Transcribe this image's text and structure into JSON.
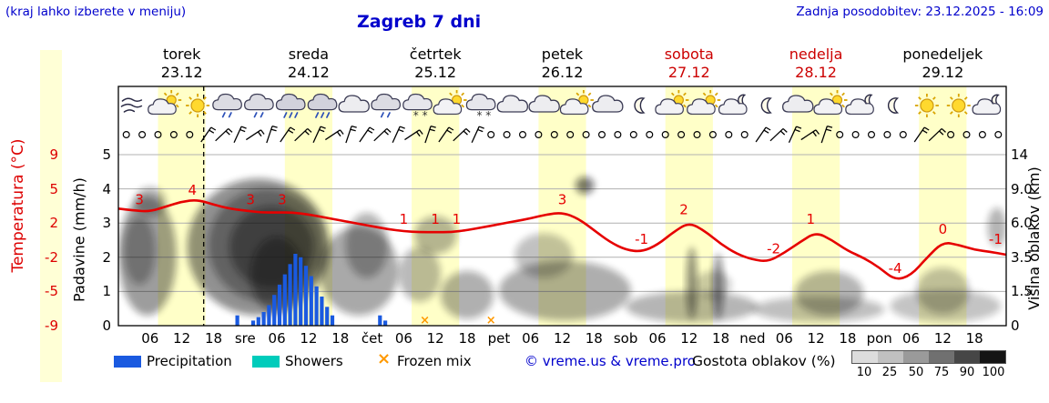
{
  "header": {
    "hint": "(kraj lahko izberete v meniju)",
    "title": "Zagreb 7 dni",
    "updated": "Zadnja posodobitev: 23.12.2025 - 16:09"
  },
  "axes": {
    "temp_label": "Temperatura (°C)",
    "temp_ticks": [
      "9",
      "5",
      "2",
      "-2",
      "-5",
      "-9"
    ],
    "precip_label": "Padavine (mm/h)",
    "precip_ticks": [
      "5",
      "4",
      "3",
      "2",
      "1",
      "0"
    ],
    "cloud_label": "Višina oblakov (km)",
    "cloud_ticks": [
      "14",
      "9.0",
      "6.0",
      "3.5",
      "1.5",
      "0"
    ]
  },
  "days": [
    {
      "name": "torek",
      "date": "23.12",
      "color": "#000000"
    },
    {
      "name": "sreda",
      "date": "24.12",
      "color": "#000000"
    },
    {
      "name": "četrtek",
      "date": "25.12",
      "color": "#000000"
    },
    {
      "name": "petek",
      "date": "26.12",
      "color": "#000000"
    },
    {
      "name": "sobota",
      "date": "27.12",
      "color": "#cc0000"
    },
    {
      "name": "nedelja",
      "date": "28.12",
      "color": "#cc0000"
    },
    {
      "name": "ponedeljek",
      "date": "29.12",
      "color": "#000000"
    }
  ],
  "time_axis": {
    "hour_labels": [
      "06",
      "12",
      "18"
    ],
    "day_abbrevs": [
      "sre",
      "čet",
      "pet",
      "sob",
      "ned",
      "pon"
    ]
  },
  "legend": {
    "precipitation": "Precipitation",
    "showers": "Showers",
    "frozen_mix": "Frozen mix",
    "frozen_symbol": "×",
    "copyright": "© vreme.us & vreme.pro",
    "cloud_density_label": "Gostota oblakov (%)",
    "cloud_density_ticks": [
      "10",
      "25",
      "50",
      "75",
      "90",
      "100"
    ],
    "gradient": [
      "#dcdcdc",
      "#c0c0c0",
      "#9a9a9a",
      "#707070",
      "#464646",
      "#141414"
    ]
  },
  "colors": {
    "precipitation": "#1a5ae0",
    "showers": "#00ccbb",
    "frozen_mix": "#ff9900",
    "temperature": "#e60000",
    "daylight_band": "#ffffc8",
    "header_blue": "#0000cc",
    "weekend_red": "#cc0000",
    "grid": "#b0b0b0"
  },
  "chart_data": {
    "type": "meteogram",
    "x_unit": "hours from torek 23.12 00:00",
    "x_range": [
      0,
      168
    ],
    "current_time_h": 16.15,
    "daylight_hours": [
      7.5,
      16.5
    ],
    "temperature_c": {
      "step_h": 3,
      "values": [
        3.4,
        3.2,
        3.1,
        3.6,
        4.1,
        4.3,
        3.8,
        3.4,
        3.2,
        3.0,
        3.0,
        3.0,
        2.8,
        2.5,
        2.2,
        1.9,
        1.6,
        1.3,
        1.1,
        1.0,
        1.0,
        1.0,
        1.2,
        1.5,
        1.8,
        2.1,
        2.4,
        2.8,
        3.0,
        2.4,
        1.2,
        0.0,
        -0.8,
        -1.0,
        -0.3,
        1.0,
        2.0,
        1.1,
        -0.2,
        -1.2,
        -1.8,
        -2.0,
        -1.1,
        0.0,
        1.0,
        0.2,
        -0.9,
        -1.6,
        -2.6,
        -3.9,
        -3.4,
        -1.6,
        0.0,
        -0.3,
        -0.8,
        -1.0,
        -1.3
      ]
    },
    "temperature_labels": [
      {
        "h": 4,
        "v": 3
      },
      {
        "h": 14,
        "v": 4
      },
      {
        "h": 25,
        "v": 3
      },
      {
        "h": 31,
        "v": 3
      },
      {
        "h": 54,
        "v": 1
      },
      {
        "h": 60,
        "v": 1
      },
      {
        "h": 64,
        "v": 1
      },
      {
        "h": 84,
        "v": 3
      },
      {
        "h": 99,
        "v": -1
      },
      {
        "h": 107,
        "v": 2
      },
      {
        "h": 124,
        "v": -2
      },
      {
        "h": 131,
        "v": 1
      },
      {
        "h": 147,
        "v": -4
      },
      {
        "h": 156,
        "v": 0
      },
      {
        "h": 166,
        "v": -1
      }
    ],
    "precipitation_mm": [
      [
        22,
        0.3
      ],
      [
        25,
        0.15
      ],
      [
        26,
        0.25
      ],
      [
        27,
        0.4
      ],
      [
        28,
        0.6
      ],
      [
        29,
        0.9
      ],
      [
        30,
        1.2
      ],
      [
        31,
        1.5
      ],
      [
        32,
        1.8
      ],
      [
        33,
        2.1
      ],
      [
        34,
        2.0
      ],
      [
        35,
        1.75
      ],
      [
        36,
        1.45
      ],
      [
        37,
        1.15
      ],
      [
        38,
        0.85
      ],
      [
        39,
        0.55
      ],
      [
        40,
        0.3
      ],
      [
        49,
        0.3
      ],
      [
        50,
        0.15
      ]
    ],
    "frozen_mix_h": [
      58,
      70.5
    ],
    "weather_icons": {
      "step_h": 6,
      "start_h": 3,
      "types": [
        "wind",
        "sun-cloud",
        "sun",
        "drizzle",
        "drizzle",
        "rain",
        "rain",
        "cloud",
        "drizzle",
        "snow",
        "sun-cloud",
        "snow",
        "cloud",
        "cloud",
        "sun-cloud",
        "cloud",
        "moon",
        "sun-cloud",
        "sun-cloud",
        "moon-cloud",
        "moon",
        "cloud",
        "sun-cloud",
        "moon-cloud",
        "moon",
        "sun",
        "sun",
        "moon-cloud"
      ]
    },
    "wind": {
      "step_h": 3,
      "start_h": 1.5,
      "symbols": "ooooobbbbbbbbbbbbbbbbbbooooooooooooooooobbbbbooooobboooo"
    },
    "cloud_patch_format": "[h_start,h_end,axis_units_bottom,axis_units_top,density]",
    "cloud_patches": [
      [
        0,
        11,
        0.3,
        3.8,
        0.4
      ],
      [
        1,
        7,
        1.2,
        3.2,
        0.3
      ],
      [
        3,
        9,
        3.2,
        4.05,
        0.3
      ],
      [
        13,
        40,
        0.3,
        4.3,
        0.45
      ],
      [
        17,
        39,
        0.7,
        4.0,
        0.35
      ],
      [
        21,
        37,
        1.1,
        3.5,
        0.4
      ],
      [
        25,
        35,
        0.4,
        2.6,
        0.4
      ],
      [
        38,
        53,
        0.3,
        2.9,
        0.35
      ],
      [
        43,
        51,
        1.4,
        3.3,
        0.3
      ],
      [
        53,
        61,
        0.7,
        2.3,
        0.28
      ],
      [
        56,
        64,
        2.1,
        3.2,
        0.3
      ],
      [
        61,
        71,
        0.2,
        1.6,
        0.32
      ],
      [
        72,
        97,
        0.15,
        1.9,
        0.33
      ],
      [
        75,
        86,
        1.4,
        2.7,
        0.25
      ],
      [
        86.5,
        90,
        3.85,
        4.35,
        0.55
      ],
      [
        96,
        121,
        0.1,
        1.0,
        0.3
      ],
      [
        107.5,
        109.5,
        0.2,
        2.3,
        0.45
      ],
      [
        109,
        116,
        0.8,
        1.6,
        0.22
      ],
      [
        112.5,
        114.5,
        0.2,
        2.1,
        0.45
      ],
      [
        120,
        145,
        0.1,
        0.85,
        0.26
      ],
      [
        128,
        141,
        0.3,
        1.6,
        0.3
      ],
      [
        146,
        167,
        0.1,
        1.05,
        0.24
      ],
      [
        151,
        161,
        0.35,
        1.7,
        0.26
      ],
      [
        164.5,
        168,
        2.3,
        3.45,
        0.3
      ]
    ]
  }
}
